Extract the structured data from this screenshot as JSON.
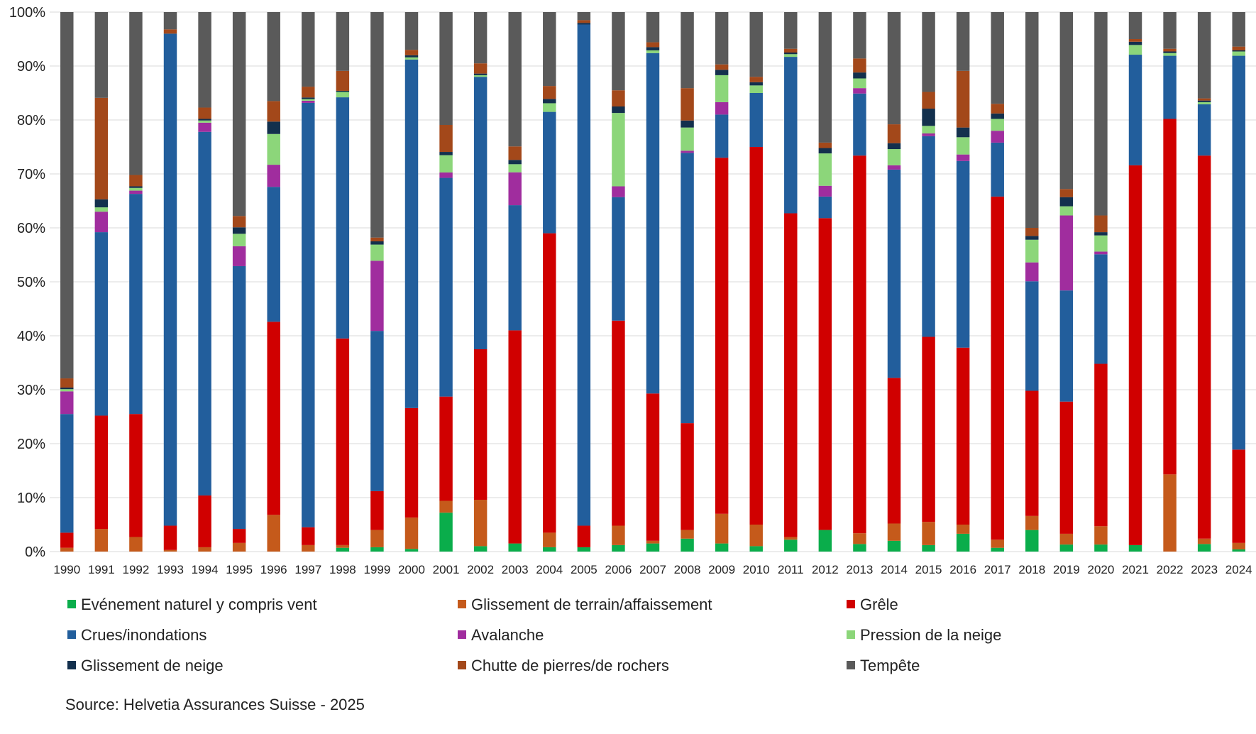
{
  "chart_data": {
    "type": "bar",
    "stacked": true,
    "normalized": true,
    "categories": [
      "1990",
      "1991",
      "1992",
      "1993",
      "1994",
      "1995",
      "1996",
      "1997",
      "1998",
      "1999",
      "2000",
      "2001",
      "2002",
      "2003",
      "2004",
      "2005",
      "2006",
      "2007",
      "2008",
      "2009",
      "2010",
      "2011",
      "2012",
      "2013",
      "2014",
      "2015",
      "2016",
      "2017",
      "2018",
      "2019",
      "2020",
      "2021",
      "2022",
      "2023",
      "2024"
    ],
    "y_ticks": [
      "0%",
      "10%",
      "20%",
      "30%",
      "40%",
      "50%",
      "60%",
      "70%",
      "80%",
      "90%",
      "100%"
    ],
    "ylim": [
      0,
      100
    ],
    "grid": true,
    "legend_position": "bottom",
    "series": [
      {
        "name": "Evénement naturel y compris vent",
        "color": "#0aad4b",
        "values": [
          0,
          0,
          0,
          0,
          0,
          0,
          0,
          0,
          0.7,
          0.8,
          0.5,
          7.2,
          1,
          1.5,
          0.8,
          0.8,
          1.2,
          1.5,
          2.4,
          1.5,
          1,
          2.2,
          4,
          1.4,
          2,
          1.2,
          3.3,
          0.7,
          4,
          1.3,
          1.3,
          1.2,
          0,
          1.4,
          0.4
        ]
      },
      {
        "name": "Glissement de terrain/affaissement",
        "color": "#c55a1b",
        "values": [
          0.7,
          4.2,
          2.7,
          0.3,
          0.8,
          1.6,
          6.8,
          1.2,
          0.5,
          3.2,
          5.8,
          2.2,
          8.6,
          0,
          2.7,
          0,
          3.6,
          0.5,
          1.6,
          5.5,
          4,
          0.5,
          0,
          2,
          3.2,
          4.3,
          1.7,
          1.5,
          2.6,
          2,
          3.4,
          0,
          14.3,
          1,
          1.2
        ]
      },
      {
        "name": "Grêle",
        "color": "#d00000",
        "values": [
          2.8,
          21,
          22.8,
          4.5,
          9.6,
          2.6,
          35.8,
          3.3,
          38.3,
          7.2,
          20.3,
          19.3,
          27.9,
          39.5,
          55.5,
          4,
          38,
          27.3,
          19.8,
          66,
          70,
          60,
          57.8,
          70,
          27,
          34.3,
          32.8,
          63.6,
          23.2,
          24.5,
          30.1,
          70.4,
          65.9,
          71,
          17.3
        ]
      },
      {
        "name": "Crues/inondations",
        "color": "#225e9c",
        "values": [
          22,
          34,
          40.8,
          91.2,
          67.4,
          48.7,
          25,
          78.5,
          44.7,
          29.7,
          64.6,
          40.5,
          50.5,
          23.2,
          22.5,
          92.9,
          22.9,
          63.1,
          50.1,
          8,
          10,
          29,
          4,
          11.5,
          38.6,
          37.2,
          34.6,
          10,
          20.3,
          20.6,
          20.3,
          20.5,
          11.7,
          9.5,
          73
        ]
      },
      {
        "name": "Avalanche",
        "color": "#a02d9e",
        "values": [
          4.2,
          3.8,
          0.6,
          0,
          1.7,
          3.7,
          4.1,
          0.4,
          0,
          13,
          0,
          1,
          0,
          6.1,
          0,
          0,
          2,
          0,
          0.4,
          2.3,
          0,
          0,
          2,
          1,
          0.8,
          0.5,
          1.2,
          2.2,
          3.5,
          13.9,
          0.5,
          0,
          0,
          0,
          0
        ]
      },
      {
        "name": "Pression de la neige",
        "color": "#8cd67a",
        "values": [
          0.4,
          0.8,
          0.5,
          0,
          0.4,
          2.3,
          5.7,
          0.3,
          1,
          3,
          0.4,
          3.2,
          0.3,
          1.5,
          1.6,
          0,
          13.6,
          0.5,
          4.3,
          5,
          1.4,
          0.5,
          6,
          1.8,
          3,
          1.4,
          3.2,
          2.2,
          4.2,
          1.7,
          3,
          1.8,
          0.5,
          0.4,
          0.8
        ]
      },
      {
        "name": "Glissement de neige",
        "color": "#13304d",
        "values": [
          0.3,
          1.5,
          0.3,
          0,
          0.3,
          1.2,
          2.3,
          0.3,
          0.2,
          0.6,
          0.4,
          0.6,
          0.3,
          0.8,
          0.8,
          0.3,
          1.2,
          0.6,
          1.3,
          1,
          0.6,
          0.3,
          1,
          1.1,
          1.1,
          3.2,
          1.8,
          1,
          0.7,
          1.7,
          0.6,
          0.6,
          0.3,
          0.3,
          0.2
        ]
      },
      {
        "name": "Chutte de pierres/de rochers",
        "color": "#a3481a",
        "values": [
          1.7,
          18.8,
          2.1,
          0.8,
          2.1,
          2.1,
          3.8,
          2,
          3.7,
          0.7,
          1,
          5,
          1.9,
          2.5,
          2.4,
          0.5,
          3,
          0.9,
          6,
          1,
          1,
          0.7,
          1,
          2.6,
          3.5,
          3.1,
          10.5,
          1.8,
          1.5,
          1.5,
          3.1,
          0.5,
          0.5,
          0.4,
          0.7
        ]
      },
      {
        "name": "Tempête",
        "color": "#5a5a5a",
        "values": [
          67.9,
          15.9,
          30.2,
          3.2,
          17.7,
          37.8,
          16.5,
          13.8,
          10.9,
          41.8,
          7,
          20.9,
          9.5,
          24.9,
          13.7,
          1.5,
          14.5,
          5.6,
          14.1,
          9.7,
          12,
          6.8,
          24.2,
          8.6,
          20.8,
          14.8,
          10.9,
          17,
          40,
          32.8,
          37.7,
          5,
          6.8,
          16,
          6.4
        ]
      }
    ]
  },
  "source": "Source: Helvetia Assurances Suisse - 2025"
}
